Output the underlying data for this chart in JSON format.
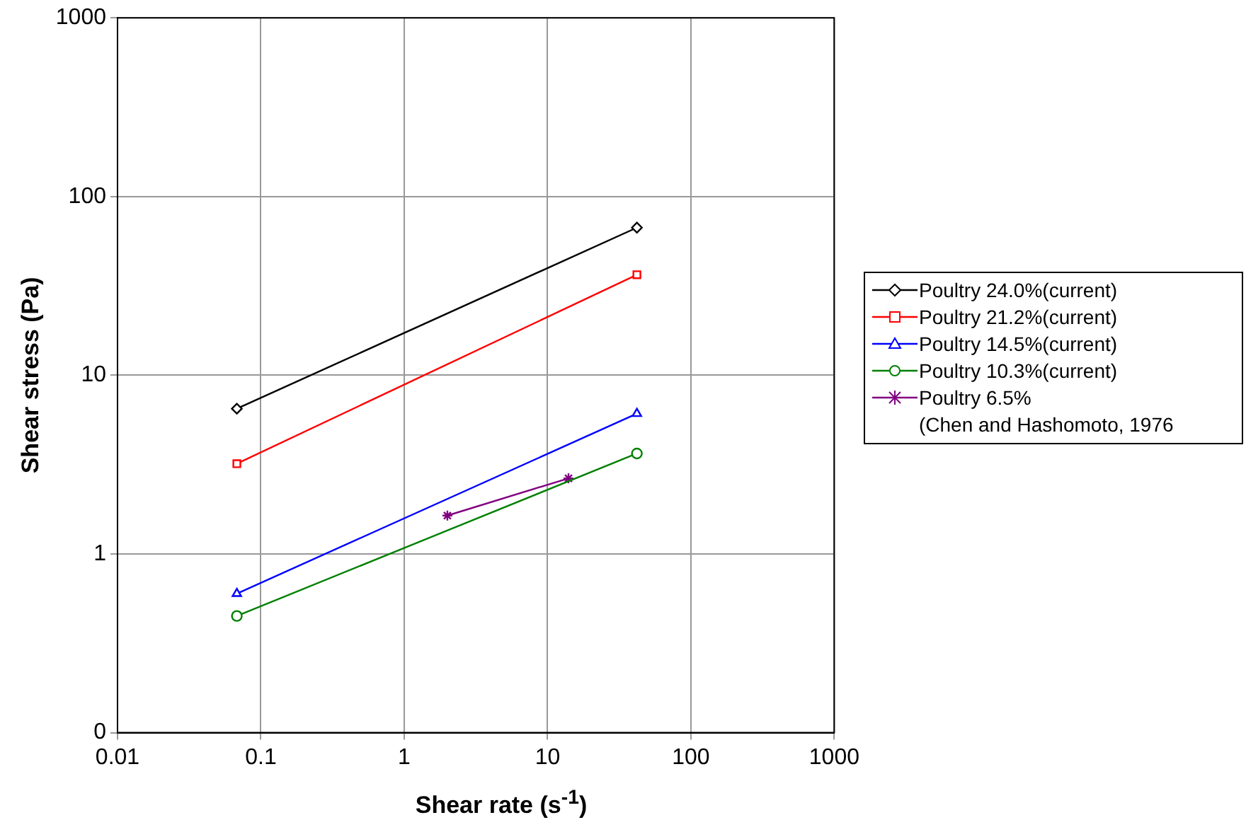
{
  "chart_data": {
    "type": "line",
    "xlabel": "Shear rate (s$^{-1}$)",
    "ylabel": "Shear stress (Pa)",
    "log": "xy",
    "grid": true,
    "legend": "right",
    "xlim": [
      0.01,
      1000
    ],
    "xticks": [
      0.01,
      0.1,
      1,
      10,
      100,
      1000
    ],
    "ylim": [
      0.1,
      1000
    ],
    "yticks": [
      {
        "value": 0.1,
        "label": "0"
      },
      1,
      10,
      100,
      1000
    ],
    "series": [
      {
        "name": "Poultry 24.0%(current)",
        "color": "#000000",
        "marker": "diamond",
        "x": [
          0.068,
          42
        ],
        "values": [
          6.5,
          67
        ]
      },
      {
        "name": "Poultry 21.2%(current)",
        "color": "#ff0000",
        "marker": "square",
        "x": [
          0.068,
          42
        ],
        "values": [
          3.2,
          36.5
        ]
      },
      {
        "name": "Poultry 14.5%(current)",
        "color": "#0000ff",
        "marker": "triangle",
        "x": [
          0.068,
          42
        ],
        "values": [
          0.6,
          6.1
        ]
      },
      {
        "name": "Poultry 10.3%(current)",
        "color": "#008000",
        "marker": "circle",
        "x": [
          0.068,
          42
        ],
        "values": [
          0.45,
          3.65
        ]
      },
      {
        "name": "Poultry 6.5%\n(Chen and Hashomoto, 1976",
        "color": "#800080",
        "marker": "cross",
        "x": [
          2.0,
          14
        ],
        "values": [
          1.64,
          2.65
        ]
      }
    ]
  }
}
